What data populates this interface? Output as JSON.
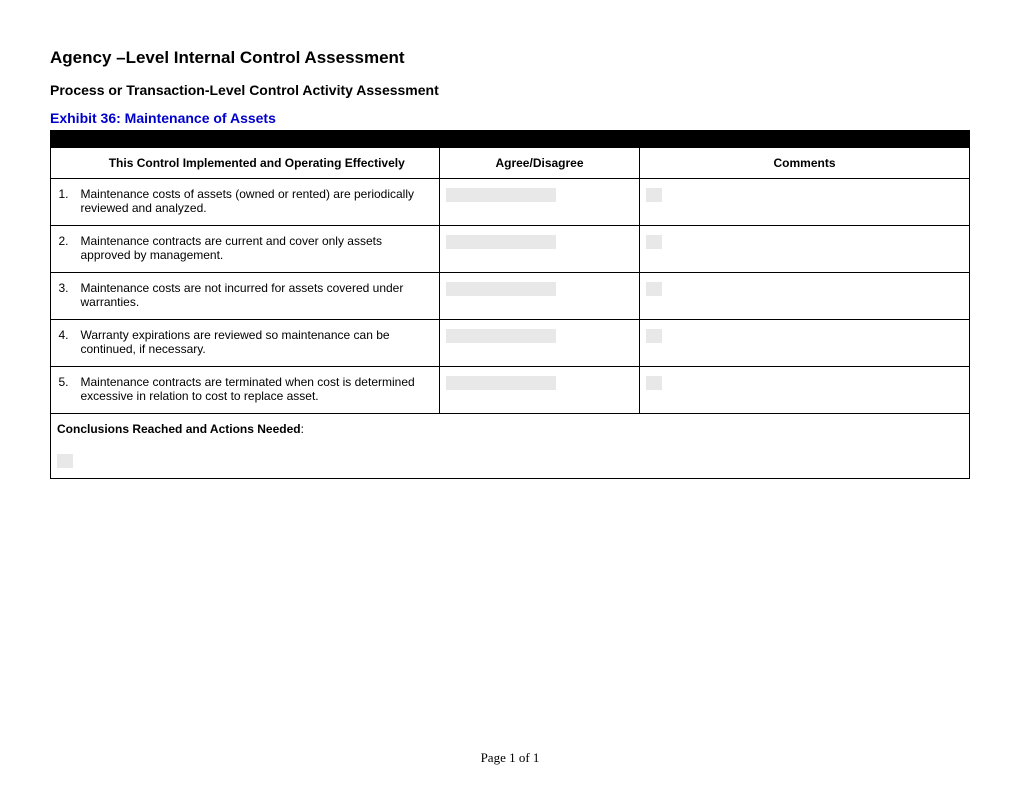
{
  "header": {
    "title": "Agency –Level Internal Control Assessment",
    "subtitle": "Process or Transaction-Level Control Activity Assessment",
    "exhibit_label": "Exhibit 36:  Maintenance of Assets",
    "exhibit_color": "#0000cc"
  },
  "table": {
    "columns": {
      "control": "This Control Implemented and Operating Effectively",
      "agree": "Agree/Disagree",
      "comments": "Comments"
    },
    "rows": [
      {
        "num": "1.",
        "text": "Maintenance costs of assets (owned or rented) are periodically reviewed and analyzed."
      },
      {
        "num": "2.",
        "text": "Maintenance contracts are current and cover only assets approved by management."
      },
      {
        "num": "3.",
        "text": "Maintenance costs are not incurred for assets covered under warranties."
      },
      {
        "num": "4.",
        "text": "Warranty expirations are reviewed so maintenance can be continued, if necessary."
      },
      {
        "num": "5.",
        "text": "Maintenance contracts are terminated when cost is determined excessive in relation to cost to replace asset."
      }
    ],
    "conclusions_label": "Conclusions Reached and Actions Needed",
    "border_color": "#000000",
    "background_color": "#ffffff",
    "placeholder_color": "#e8e8e8",
    "font_size": 12
  },
  "footer": {
    "text": "Page 1 of 1"
  }
}
